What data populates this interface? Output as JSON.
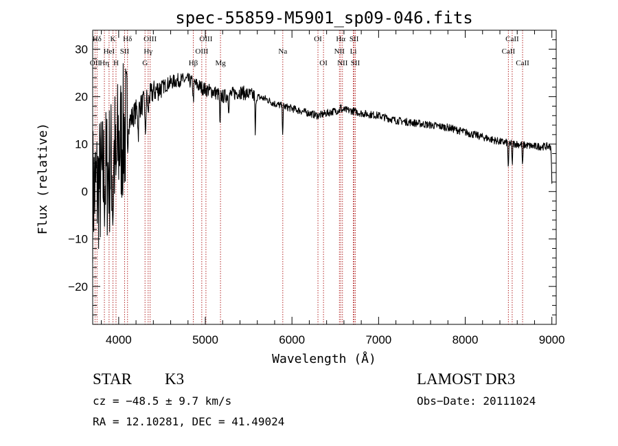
{
  "chart_data": {
    "type": "line",
    "title": "spec-55859-M5901_sp09-046.fits",
    "xlabel": "Wavelength (Å)",
    "ylabel": "Flux (relative)",
    "xlim": [
      3700,
      9050
    ],
    "ylim": [
      -28,
      34
    ],
    "xticks": [
      4000,
      5000,
      6000,
      7000,
      8000,
      9000
    ],
    "yticks": [
      -20,
      -10,
      0,
      10,
      20,
      30
    ],
    "xtick_labels": [
      "4000",
      "5000",
      "6000",
      "7000",
      "8000",
      "9000"
    ],
    "ytick_labels": [
      "−20",
      "−10",
      "0",
      "10",
      "20",
      "30"
    ],
    "line_color": "#000000",
    "marker_color": "#b22222",
    "continuum": [
      [
        3700,
        0
      ],
      [
        3800,
        2
      ],
      [
        3900,
        5
      ],
      [
        4000,
        10
      ],
      [
        4100,
        14
      ],
      [
        4200,
        17
      ],
      [
        4300,
        19
      ],
      [
        4400,
        21
      ],
      [
        4500,
        22
      ],
      [
        4600,
        23
      ],
      [
        4700,
        23.5
      ],
      [
        4800,
        23.5
      ],
      [
        4900,
        22.5
      ],
      [
        5000,
        21.5
      ],
      [
        5100,
        21
      ],
      [
        5200,
        20
      ],
      [
        5300,
        20.5
      ],
      [
        5400,
        21
      ],
      [
        5500,
        20.5
      ],
      [
        5600,
        20
      ],
      [
        5700,
        19.5
      ],
      [
        5800,
        18.5
      ],
      [
        5900,
        18
      ],
      [
        6000,
        17.5
      ],
      [
        6100,
        17
      ],
      [
        6200,
        16.5
      ],
      [
        6300,
        16
      ],
      [
        6400,
        16.5
      ],
      [
        6500,
        17
      ],
      [
        6600,
        17.2
      ],
      [
        6700,
        17
      ],
      [
        6800,
        16.5
      ],
      [
        7000,
        16
      ],
      [
        7200,
        15
      ],
      [
        7400,
        14.5
      ],
      [
        7600,
        14
      ],
      [
        7800,
        13.5
      ],
      [
        8000,
        12.5
      ],
      [
        8200,
        11.5
      ],
      [
        8400,
        10.5
      ],
      [
        8600,
        10
      ],
      [
        8800,
        9.5
      ],
      [
        9000,
        9.5
      ]
    ],
    "absorption_features": [
      {
        "wave": 3934,
        "depth": 12
      },
      {
        "wave": 3969,
        "depth": 10
      },
      {
        "wave": 4102,
        "depth": 6
      },
      {
        "wave": 4226,
        "depth": 6
      },
      {
        "wave": 4308,
        "depth": 9
      },
      {
        "wave": 4340,
        "depth": 4
      },
      {
        "wave": 4861,
        "depth": 4
      },
      {
        "wave": 5170,
        "depth": 8
      },
      {
        "wave": 5270,
        "depth": 3
      },
      {
        "wave": 5577,
        "depth": 9
      },
      {
        "wave": 5893,
        "depth": 6
      },
      {
        "wave": 6563,
        "depth": -1
      },
      {
        "wave": 8498,
        "depth": 6
      },
      {
        "wave": 8542,
        "depth": 5
      },
      {
        "wave": 8662,
        "depth": 5
      },
      {
        "wave": 9000,
        "depth": 8
      }
    ],
    "spectral_lines": [
      {
        "label": "Hδ",
        "wave": 3750,
        "row": 1
      },
      {
        "label": "OII",
        "wave": 3727,
        "row": 3
      },
      {
        "label": "K",
        "wave": 3934,
        "row": 1
      },
      {
        "label": "HeI",
        "wave": 3889,
        "row": 2
      },
      {
        "label": "Hη",
        "wave": 3835,
        "row": 3
      },
      {
        "label": "H",
        "wave": 3969,
        "row": 3
      },
      {
        "label": "SII",
        "wave": 4068,
        "row": 2
      },
      {
        "label": "Hδ",
        "wave": 4102,
        "row": 1
      },
      {
        "label": "OIII",
        "wave": 4363,
        "row": 1
      },
      {
        "label": "Hγ",
        "wave": 4340,
        "row": 2
      },
      {
        "label": "G",
        "wave": 4304,
        "row": 3
      },
      {
        "label": "Hβ",
        "wave": 4861,
        "row": 3
      },
      {
        "label": "OIII",
        "wave": 5007,
        "row": 1
      },
      {
        "label": "OIII",
        "wave": 4959,
        "row": 2
      },
      {
        "label": "Mg",
        "wave": 5175,
        "row": 3
      },
      {
        "label": "Na",
        "wave": 5894,
        "row": 2
      },
      {
        "label": "OI",
        "wave": 6300,
        "row": 1
      },
      {
        "label": "OI",
        "wave": 6364,
        "row": 3
      },
      {
        "label": "Hα",
        "wave": 6563,
        "row": 1
      },
      {
        "label": "NII",
        "wave": 6548,
        "row": 2
      },
      {
        "label": "NII",
        "wave": 6583,
        "row": 3
      },
      {
        "label": "SII",
        "wave": 6717,
        "row": 1
      },
      {
        "label": "Li",
        "wave": 6708,
        "row": 2
      },
      {
        "label": "SII",
        "wave": 6731,
        "row": 3
      },
      {
        "label": "CaII",
        "wave": 8542,
        "row": 1
      },
      {
        "label": "CaII",
        "wave": 8498,
        "row": 2
      },
      {
        "label": "CaII",
        "wave": 8662,
        "row": 3
      }
    ]
  },
  "info": {
    "object_class": "STAR",
    "subclass": "K3",
    "survey": "LAMOST DR3",
    "redshift_line": "cz = −48.5 ± 9.7 km/s",
    "obs_date_line": "Obs−Date: 20111024",
    "coords_line": "RA =  12.10281, DEC =  41.49024"
  }
}
